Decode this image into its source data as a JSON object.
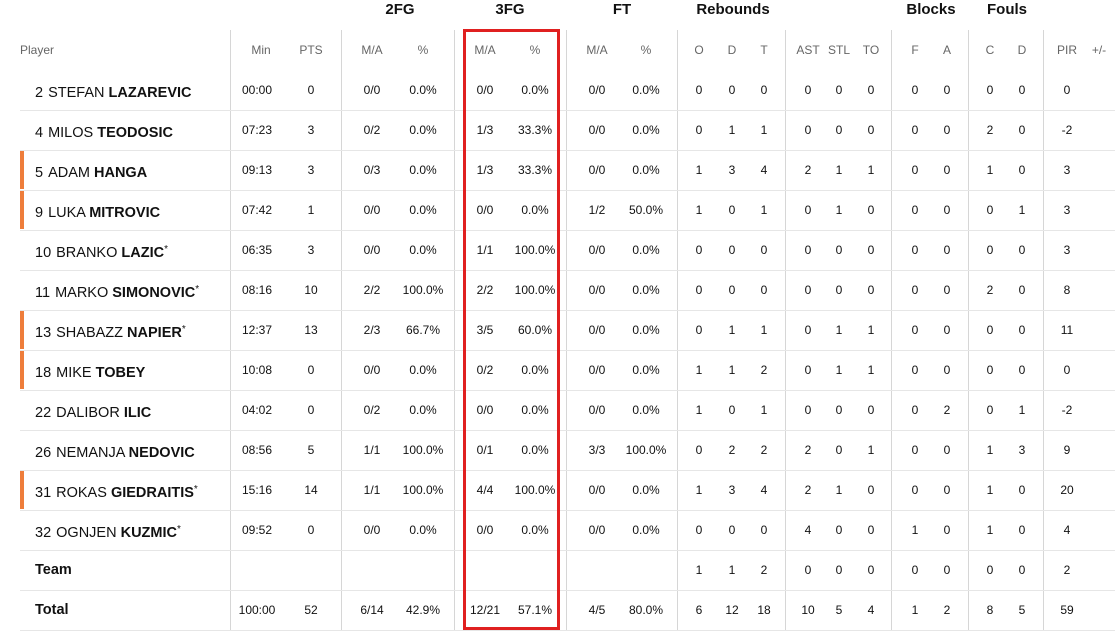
{
  "header": {
    "groups": {
      "fg2": "2FG",
      "fg3": "3FG",
      "ft": "FT",
      "rebounds": "Rebounds",
      "blocks": "Blocks",
      "fouls": "Fouls"
    },
    "cols": {
      "player": "Player",
      "min": "Min",
      "pts": "PTS",
      "fg2_ma": "M/A",
      "fg2_pct": "%",
      "fg3_ma": "M/A",
      "fg3_pct": "%",
      "ft_ma": "M/A",
      "ft_pct": "%",
      "reb_o": "O",
      "reb_d": "D",
      "reb_t": "T",
      "ast": "AST",
      "stl": "STL",
      "to": "TO",
      "blk_f": "F",
      "blk_a": "A",
      "fouls_c": "C",
      "fouls_d": "D",
      "pir": "PIR",
      "plusminus": "+/-"
    }
  },
  "accent_color": "#ee7d3b",
  "highlight_color": "#e02020",
  "rows": [
    {
      "num": "2",
      "first": "STEFAN",
      "last": "LAZAREVIC",
      "star": "",
      "starter": false,
      "min": "00:00",
      "pts": "0",
      "fg2_ma": "0/0",
      "fg2_pct": "0.0%",
      "fg3_ma": "0/0",
      "fg3_pct": "0.0%",
      "ft_ma": "0/0",
      "ft_pct": "0.0%",
      "o": "0",
      "d": "0",
      "t": "0",
      "ast": "0",
      "stl": "0",
      "to": "0",
      "bf": "0",
      "ba": "0",
      "fc": "0",
      "fd": "0",
      "pir": "0",
      "pm": ""
    },
    {
      "num": "4",
      "first": "MILOS",
      "last": "TEODOSIC",
      "star": "",
      "starter": false,
      "min": "07:23",
      "pts": "3",
      "fg2_ma": "0/2",
      "fg2_pct": "0.0%",
      "fg3_ma": "1/3",
      "fg3_pct": "33.3%",
      "ft_ma": "0/0",
      "ft_pct": "0.0%",
      "o": "0",
      "d": "1",
      "t": "1",
      "ast": "0",
      "stl": "0",
      "to": "0",
      "bf": "0",
      "ba": "0",
      "fc": "2",
      "fd": "0",
      "pir": "-2",
      "pm": ""
    },
    {
      "num": "5",
      "first": "ADAM",
      "last": "HANGA",
      "star": "",
      "starter": true,
      "min": "09:13",
      "pts": "3",
      "fg2_ma": "0/3",
      "fg2_pct": "0.0%",
      "fg3_ma": "1/3",
      "fg3_pct": "33.3%",
      "ft_ma": "0/0",
      "ft_pct": "0.0%",
      "o": "1",
      "d": "3",
      "t": "4",
      "ast": "2",
      "stl": "1",
      "to": "1",
      "bf": "0",
      "ba": "0",
      "fc": "1",
      "fd": "0",
      "pir": "3",
      "pm": ""
    },
    {
      "num": "9",
      "first": "LUKA",
      "last": "MITROVIC",
      "star": "",
      "starter": true,
      "min": "07:42",
      "pts": "1",
      "fg2_ma": "0/0",
      "fg2_pct": "0.0%",
      "fg3_ma": "0/0",
      "fg3_pct": "0.0%",
      "ft_ma": "1/2",
      "ft_pct": "50.0%",
      "o": "1",
      "d": "0",
      "t": "1",
      "ast": "0",
      "stl": "1",
      "to": "0",
      "bf": "0",
      "ba": "0",
      "fc": "0",
      "fd": "1",
      "pir": "3",
      "pm": ""
    },
    {
      "num": "10",
      "first": "BRANKO",
      "last": "LAZIC",
      "star": "*",
      "starter": false,
      "min": "06:35",
      "pts": "3",
      "fg2_ma": "0/0",
      "fg2_pct": "0.0%",
      "fg3_ma": "1/1",
      "fg3_pct": "100.0%",
      "ft_ma": "0/0",
      "ft_pct": "0.0%",
      "o": "0",
      "d": "0",
      "t": "0",
      "ast": "0",
      "stl": "0",
      "to": "0",
      "bf": "0",
      "ba": "0",
      "fc": "0",
      "fd": "0",
      "pir": "3",
      "pm": ""
    },
    {
      "num": "11",
      "first": "MARKO",
      "last": "SIMONOVIC",
      "star": "*",
      "starter": false,
      "min": "08:16",
      "pts": "10",
      "fg2_ma": "2/2",
      "fg2_pct": "100.0%",
      "fg3_ma": "2/2",
      "fg3_pct": "100.0%",
      "ft_ma": "0/0",
      "ft_pct": "0.0%",
      "o": "0",
      "d": "0",
      "t": "0",
      "ast": "0",
      "stl": "0",
      "to": "0",
      "bf": "0",
      "ba": "0",
      "fc": "2",
      "fd": "0",
      "pir": "8",
      "pm": ""
    },
    {
      "num": "13",
      "first": "SHABAZZ",
      "last": "NAPIER",
      "star": "*",
      "starter": true,
      "min": "12:37",
      "pts": "13",
      "fg2_ma": "2/3",
      "fg2_pct": "66.7%",
      "fg3_ma": "3/5",
      "fg3_pct": "60.0%",
      "ft_ma": "0/0",
      "ft_pct": "0.0%",
      "o": "0",
      "d": "1",
      "t": "1",
      "ast": "0",
      "stl": "1",
      "to": "1",
      "bf": "0",
      "ba": "0",
      "fc": "0",
      "fd": "0",
      "pir": "11",
      "pm": ""
    },
    {
      "num": "18",
      "first": "MIKE",
      "last": "TOBEY",
      "star": "",
      "starter": true,
      "min": "10:08",
      "pts": "0",
      "fg2_ma": "0/0",
      "fg2_pct": "0.0%",
      "fg3_ma": "0/2",
      "fg3_pct": "0.0%",
      "ft_ma": "0/0",
      "ft_pct": "0.0%",
      "o": "1",
      "d": "1",
      "t": "2",
      "ast": "0",
      "stl": "1",
      "to": "1",
      "bf": "0",
      "ba": "0",
      "fc": "0",
      "fd": "0",
      "pir": "0",
      "pm": ""
    },
    {
      "num": "22",
      "first": "DALIBOR",
      "last": "ILIC",
      "star": "",
      "starter": false,
      "min": "04:02",
      "pts": "0",
      "fg2_ma": "0/2",
      "fg2_pct": "0.0%",
      "fg3_ma": "0/0",
      "fg3_pct": "0.0%",
      "ft_ma": "0/0",
      "ft_pct": "0.0%",
      "o": "1",
      "d": "0",
      "t": "1",
      "ast": "0",
      "stl": "0",
      "to": "0",
      "bf": "0",
      "ba": "2",
      "fc": "0",
      "fd": "1",
      "pir": "-2",
      "pm": ""
    },
    {
      "num": "26",
      "first": "NEMANJA",
      "last": "NEDOVIC",
      "star": "",
      "starter": false,
      "min": "08:56",
      "pts": "5",
      "fg2_ma": "1/1",
      "fg2_pct": "100.0%",
      "fg3_ma": "0/1",
      "fg3_pct": "0.0%",
      "ft_ma": "3/3",
      "ft_pct": "100.0%",
      "o": "0",
      "d": "2",
      "t": "2",
      "ast": "2",
      "stl": "0",
      "to": "1",
      "bf": "0",
      "ba": "0",
      "fc": "1",
      "fd": "3",
      "pir": "9",
      "pm": ""
    },
    {
      "num": "31",
      "first": "ROKAS",
      "last": "GIEDRAITIS",
      "star": "*",
      "starter": true,
      "min": "15:16",
      "pts": "14",
      "fg2_ma": "1/1",
      "fg2_pct": "100.0%",
      "fg3_ma": "4/4",
      "fg3_pct": "100.0%",
      "ft_ma": "0/0",
      "ft_pct": "0.0%",
      "o": "1",
      "d": "3",
      "t": "4",
      "ast": "2",
      "stl": "1",
      "to": "0",
      "bf": "0",
      "ba": "0",
      "fc": "1",
      "fd": "0",
      "pir": "20",
      "pm": ""
    },
    {
      "num": "32",
      "first": "OGNJEN",
      "last": "KUZMIC",
      "star": "*",
      "starter": false,
      "min": "09:52",
      "pts": "0",
      "fg2_ma": "0/0",
      "fg2_pct": "0.0%",
      "fg3_ma": "0/0",
      "fg3_pct": "0.0%",
      "ft_ma": "0/0",
      "ft_pct": "0.0%",
      "o": "0",
      "d": "0",
      "t": "0",
      "ast": "4",
      "stl": "0",
      "to": "0",
      "bf": "1",
      "ba": "0",
      "fc": "1",
      "fd": "0",
      "pir": "4",
      "pm": ""
    }
  ],
  "team_row": {
    "label": "Team",
    "min": "",
    "pts": "",
    "fg2_ma": "",
    "fg2_pct": "",
    "fg3_ma": "",
    "fg3_pct": "",
    "ft_ma": "",
    "ft_pct": "",
    "o": "1",
    "d": "1",
    "t": "2",
    "ast": "0",
    "stl": "0",
    "to": "0",
    "bf": "0",
    "ba": "0",
    "fc": "0",
    "fd": "0",
    "pir": "2",
    "pm": ""
  },
  "total_row": {
    "label": "Total",
    "min": "100:00",
    "pts": "52",
    "fg2_ma": "6/14",
    "fg2_pct": "42.9%",
    "fg3_ma": "12/21",
    "fg3_pct": "57.1%",
    "ft_ma": "4/5",
    "ft_pct": "80.0%",
    "o": "6",
    "d": "12",
    "t": "18",
    "ast": "10",
    "stl": "5",
    "to": "4",
    "bf": "1",
    "ba": "2",
    "fc": "8",
    "fd": "5",
    "pir": "59",
    "pm": ""
  }
}
